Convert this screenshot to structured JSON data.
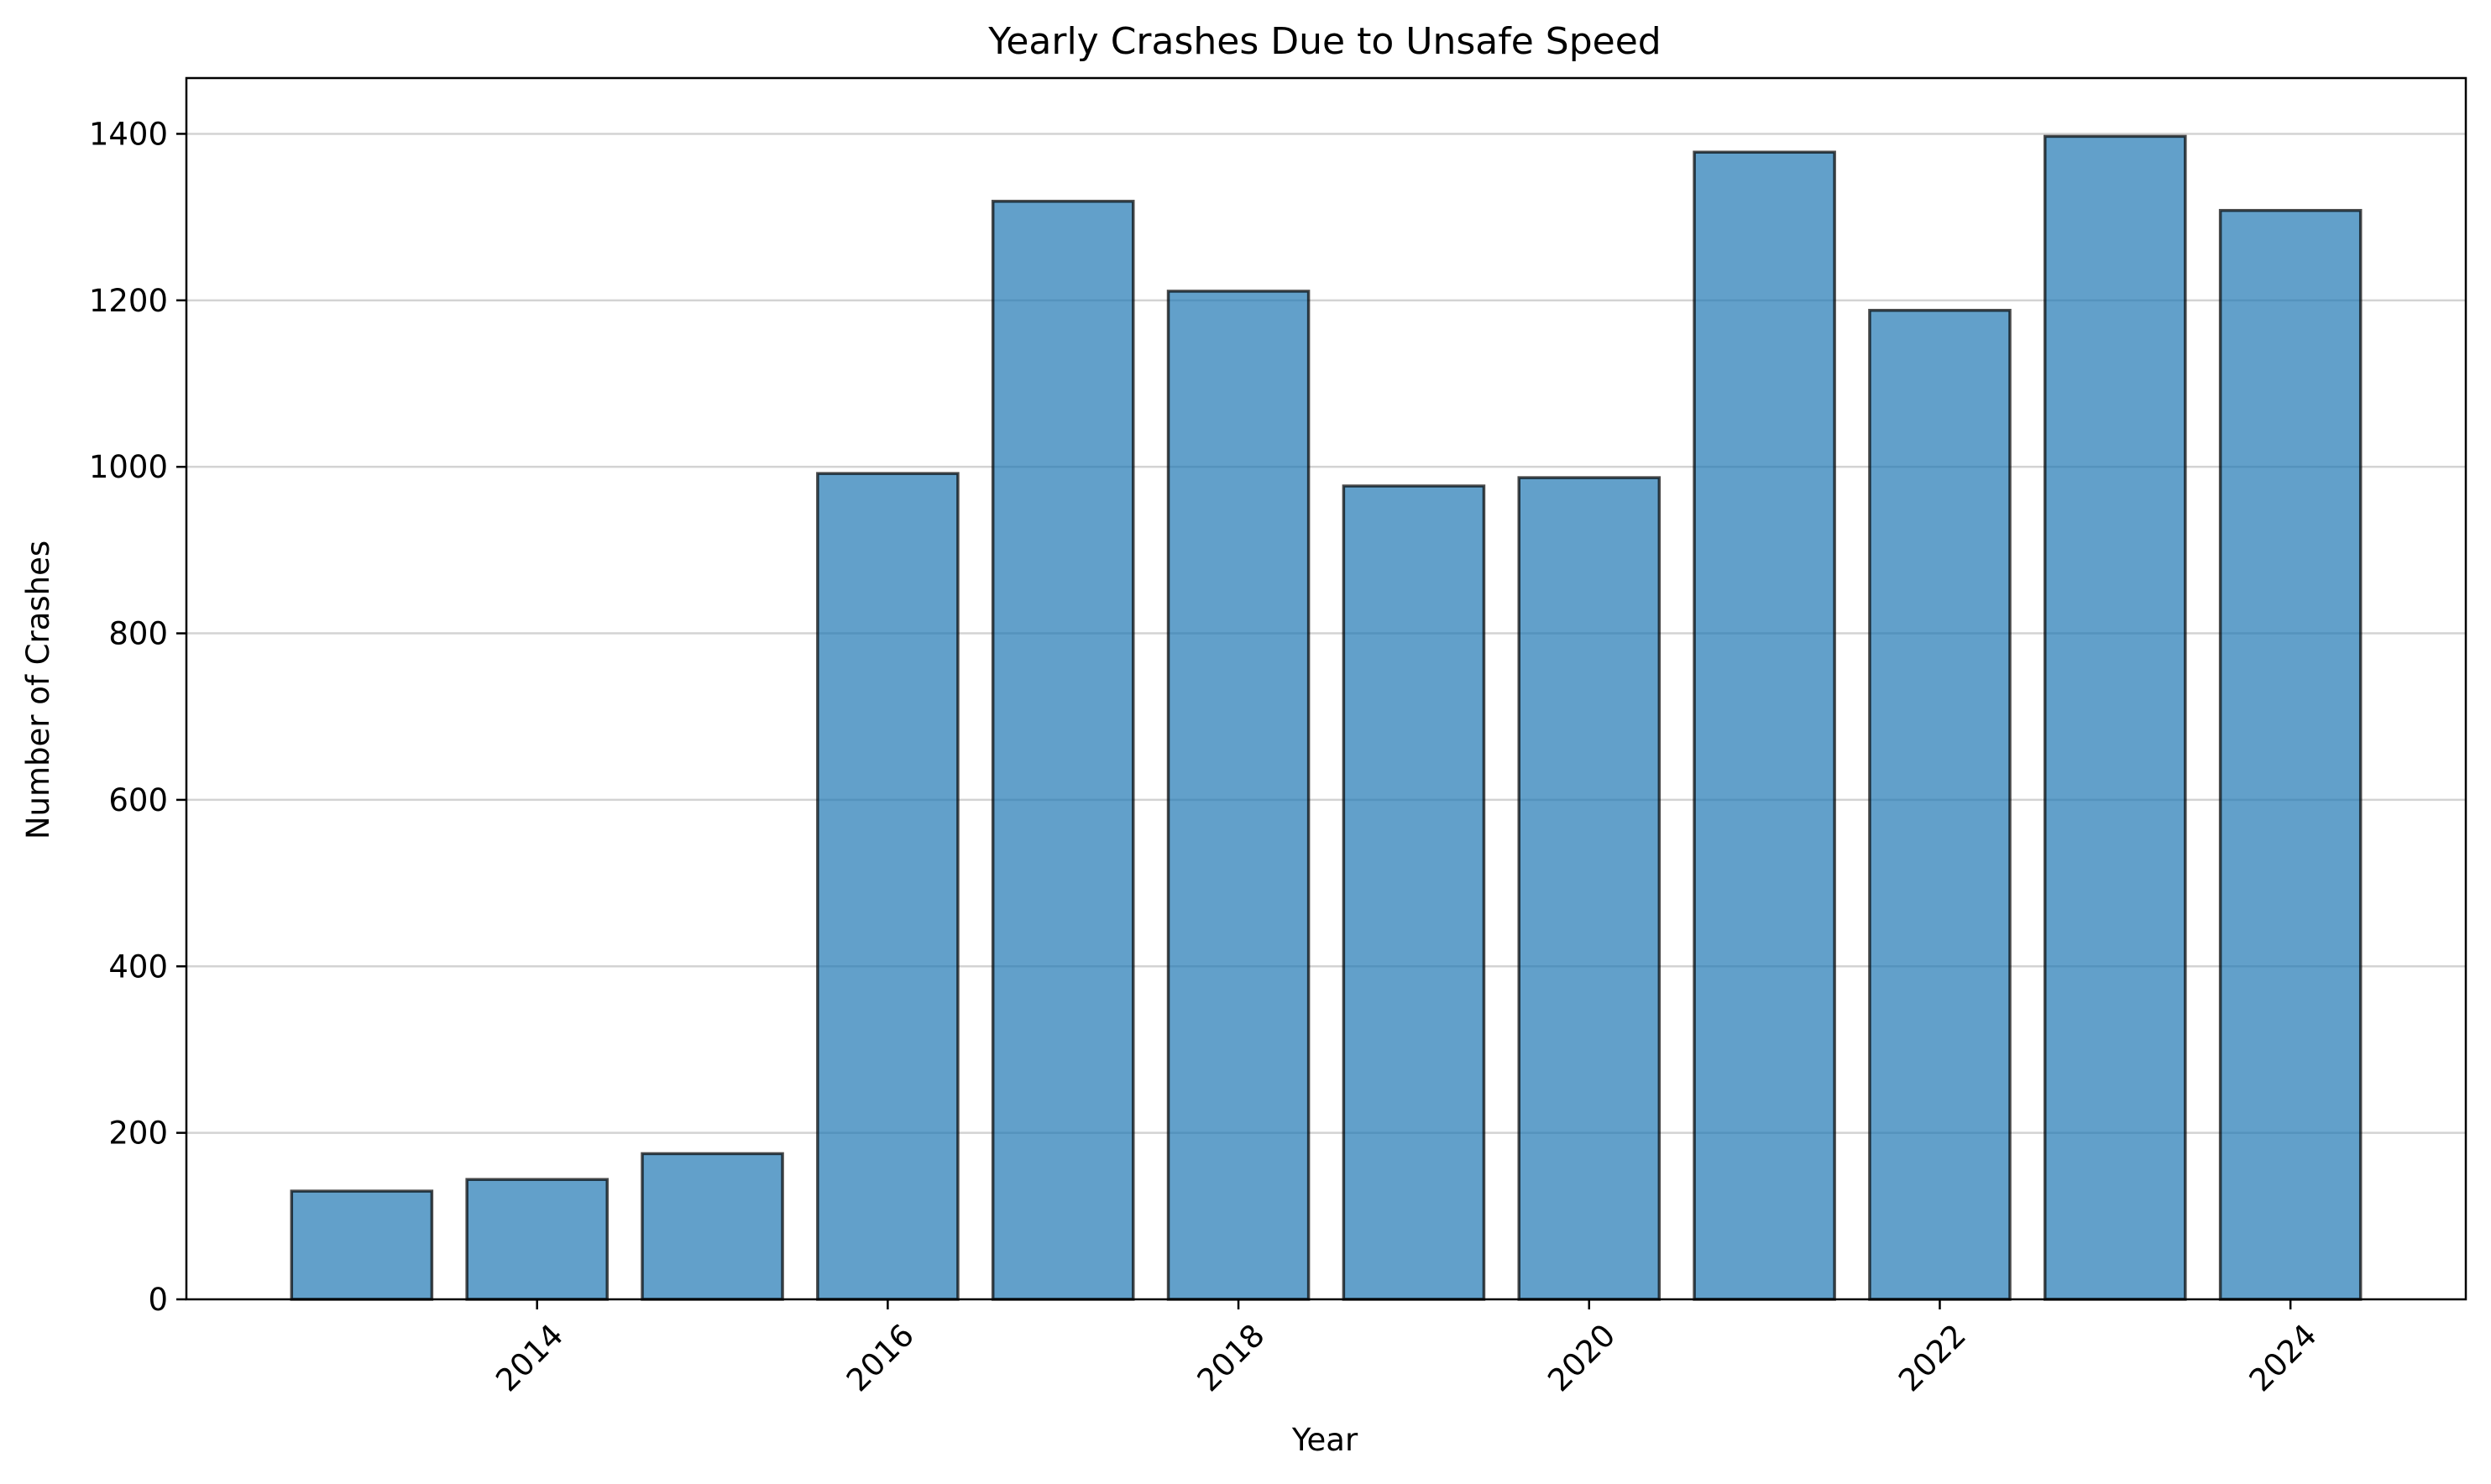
{
  "chart_data": {
    "type": "bar",
    "title": "Yearly Crashes Due to Unsafe Speed",
    "xlabel": "Year",
    "ylabel": "Number of Crashes",
    "categories": [
      2013,
      2014,
      2015,
      2016,
      2017,
      2018,
      2019,
      2020,
      2021,
      2022,
      2023,
      2024
    ],
    "values": [
      130,
      144,
      175,
      992,
      1319,
      1211,
      977,
      987,
      1378,
      1188,
      1397,
      1308
    ],
    "xlim": [
      2012,
      2025
    ],
    "ylim": [
      0,
      1467
    ],
    "x_ticks": [
      2014,
      2016,
      2018,
      2020,
      2022,
      2024
    ],
    "y_ticks": [
      0,
      200,
      400,
      600,
      800,
      1000,
      1200,
      1400
    ],
    "x_tick_rotation_deg": 45,
    "grid": "y-major",
    "legend": "none",
    "colors": {
      "bar": "#1f77b4",
      "edge": "#000000",
      "grid": "#d3d3d3"
    }
  }
}
